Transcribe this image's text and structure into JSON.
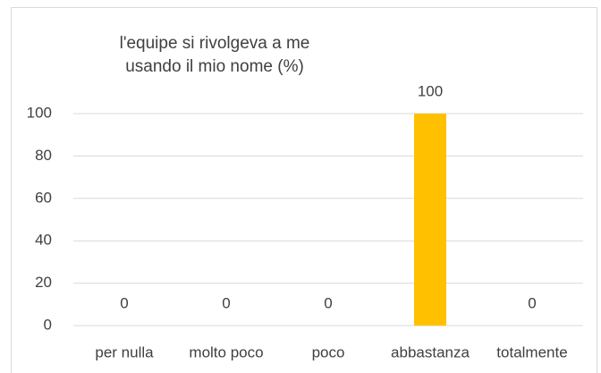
{
  "chart_data": {
    "type": "bar",
    "title": "l'equipe si rivolgeva a me usando il mio nome (%)",
    "categories": [
      "per nulla",
      "molto poco",
      "poco",
      "abbastanza",
      "totalmente"
    ],
    "values": [
      0,
      0,
      0,
      100,
      0
    ],
    "color": "#ffc000",
    "ylim": [
      0,
      100
    ],
    "yticks": [
      0,
      20,
      40,
      60,
      80,
      100
    ],
    "grid": true
  }
}
